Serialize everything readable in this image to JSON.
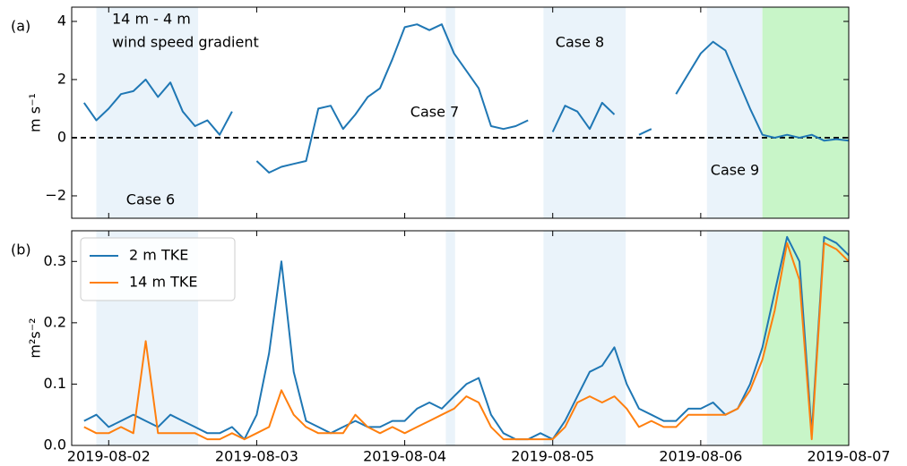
{
  "chart_data": [
    {
      "type": "line",
      "panel_label": "(a)",
      "ylabel": "m s⁻¹",
      "xlim": [
        "2019-08-01 18:00",
        "2019-08-07 00:00"
      ],
      "ylim": [
        -2.77,
        4.49
      ],
      "yticks": [
        {
          "value": -2,
          "label": "−2"
        },
        0,
        2,
        4
      ],
      "reference_line": 0,
      "annotations": [
        "14 m - 4 m",
        "wind speed gradient"
      ],
      "shaded_regions": [
        {
          "start": "2019-08-01 22:00",
          "end": "2019-08-02 14:30",
          "color": "#eaf3fa",
          "label": "Case 6"
        },
        {
          "start": "2019-08-04 06:40",
          "end": "2019-08-04 08:10",
          "color": "#eaf3fa",
          "label": "Case 7"
        },
        {
          "start": "2019-08-04 22:30",
          "end": "2019-08-05 11:50",
          "color": "#eaf3fa",
          "label": "Case 8"
        },
        {
          "start": "2019-08-06 01:00",
          "end": "2019-08-06 10:00",
          "color": "#eaf3fa",
          "label": "Case 9"
        },
        {
          "start": "2019-08-06 10:00",
          "end": "2019-08-07 00:00",
          "color": "#c8f5c8"
        }
      ],
      "x": [
        "2019-08-01 20:00",
        "2019-08-01 22:00",
        "2019-08-02 00:00",
        "2019-08-02 02:00",
        "2019-08-02 04:00",
        "2019-08-02 06:00",
        "2019-08-02 08:00",
        "2019-08-02 10:00",
        "2019-08-02 12:00",
        "2019-08-02 14:00",
        "2019-08-02 16:00",
        "2019-08-02 18:00",
        "2019-08-02 20:00",
        "2019-08-02 22:00",
        "2019-08-03 00:00",
        "2019-08-03 02:00",
        "2019-08-03 04:00",
        "2019-08-03 06:00",
        "2019-08-03 08:00",
        "2019-08-03 10:00",
        "2019-08-03 12:00",
        "2019-08-03 14:00",
        "2019-08-03 16:00",
        "2019-08-03 18:00",
        "2019-08-03 20:00",
        "2019-08-03 22:00",
        "2019-08-04 00:00",
        "2019-08-04 02:00",
        "2019-08-04 04:00",
        "2019-08-04 06:00",
        "2019-08-04 08:00",
        "2019-08-04 10:00",
        "2019-08-04 12:00",
        "2019-08-04 14:00",
        "2019-08-04 16:00",
        "2019-08-04 18:00",
        "2019-08-04 20:00",
        "2019-08-04 22:00",
        "2019-08-05 00:00",
        "2019-08-05 02:00",
        "2019-08-05 04:00",
        "2019-08-05 06:00",
        "2019-08-05 08:00",
        "2019-08-05 10:00",
        "2019-08-05 12:00",
        "2019-08-05 14:00",
        "2019-08-05 16:00",
        "2019-08-05 18:00",
        "2019-08-05 20:00",
        "2019-08-05 22:00",
        "2019-08-06 00:00",
        "2019-08-06 02:00",
        "2019-08-06 04:00",
        "2019-08-06 06:00",
        "2019-08-06 08:00",
        "2019-08-06 10:00",
        "2019-08-06 12:00",
        "2019-08-06 14:00",
        "2019-08-06 16:00",
        "2019-08-06 18:00",
        "2019-08-06 20:00",
        "2019-08-06 22:00",
        "2019-08-07 00:00"
      ],
      "series": [
        {
          "name": "14 m - 4 m wind speed gradient",
          "color": "#1f77b4",
          "values": [
            1.2,
            0.6,
            1.0,
            1.5,
            1.6,
            2.0,
            1.4,
            1.9,
            0.9,
            0.4,
            0.6,
            0.1,
            0.9,
            null,
            -0.8,
            -1.2,
            -1.0,
            -0.9,
            -0.8,
            1.0,
            1.1,
            0.3,
            0.8,
            1.4,
            1.7,
            2.7,
            3.8,
            3.9,
            3.7,
            3.9,
            2.9,
            2.3,
            1.7,
            0.4,
            0.3,
            0.4,
            0.6,
            null,
            0.2,
            1.1,
            0.9,
            0.3,
            1.2,
            0.8,
            null,
            0.1,
            0.3,
            null,
            1.5,
            2.2,
            2.9,
            3.3,
            3.0,
            2.0,
            1.0,
            0.1,
            0.0,
            0.1,
            0.0,
            0.1,
            -0.1,
            -0.05,
            -0.1
          ]
        }
      ]
    },
    {
      "type": "line",
      "panel_label": "(b)",
      "ylabel": "m²s⁻²",
      "legend": "upper left",
      "xlim": [
        "2019-08-01 18:00",
        "2019-08-07 00:00"
      ],
      "xticks": [
        "2019-08-02",
        "2019-08-03",
        "2019-08-04",
        "2019-08-05",
        "2019-08-06",
        "2019-08-07"
      ],
      "ylim": [
        0,
        0.35
      ],
      "yticks": [
        {
          "value": 0,
          "label": "0.0"
        },
        0.1,
        0.2,
        0.3
      ],
      "shaded_regions": [
        {
          "start": "2019-08-01 22:00",
          "end": "2019-08-02 14:30",
          "color": "#eaf3fa"
        },
        {
          "start": "2019-08-04 06:40",
          "end": "2019-08-04 08:10",
          "color": "#eaf3fa"
        },
        {
          "start": "2019-08-04 22:30",
          "end": "2019-08-05 11:50",
          "color": "#eaf3fa"
        },
        {
          "start": "2019-08-06 01:00",
          "end": "2019-08-06 10:00",
          "color": "#eaf3fa"
        },
        {
          "start": "2019-08-06 10:00",
          "end": "2019-08-07 00:00",
          "color": "#c8f5c8"
        }
      ],
      "x": [
        "2019-08-01 20:00",
        "2019-08-01 22:00",
        "2019-08-02 00:00",
        "2019-08-02 02:00",
        "2019-08-02 04:00",
        "2019-08-02 06:00",
        "2019-08-02 08:00",
        "2019-08-02 10:00",
        "2019-08-02 12:00",
        "2019-08-02 14:00",
        "2019-08-02 16:00",
        "2019-08-02 18:00",
        "2019-08-02 20:00",
        "2019-08-02 22:00",
        "2019-08-03 00:00",
        "2019-08-03 02:00",
        "2019-08-03 04:00",
        "2019-08-03 06:00",
        "2019-08-03 08:00",
        "2019-08-03 10:00",
        "2019-08-03 12:00",
        "2019-08-03 14:00",
        "2019-08-03 16:00",
        "2019-08-03 18:00",
        "2019-08-03 20:00",
        "2019-08-03 22:00",
        "2019-08-04 00:00",
        "2019-08-04 02:00",
        "2019-08-04 04:00",
        "2019-08-04 06:00",
        "2019-08-04 08:00",
        "2019-08-04 10:00",
        "2019-08-04 12:00",
        "2019-08-04 14:00",
        "2019-08-04 16:00",
        "2019-08-04 18:00",
        "2019-08-04 20:00",
        "2019-08-04 22:00",
        "2019-08-05 00:00",
        "2019-08-05 02:00",
        "2019-08-05 04:00",
        "2019-08-05 06:00",
        "2019-08-05 08:00",
        "2019-08-05 10:00",
        "2019-08-05 12:00",
        "2019-08-05 14:00",
        "2019-08-05 16:00",
        "2019-08-05 18:00",
        "2019-08-05 20:00",
        "2019-08-05 22:00",
        "2019-08-06 00:00",
        "2019-08-06 02:00",
        "2019-08-06 04:00",
        "2019-08-06 06:00",
        "2019-08-06 08:00",
        "2019-08-06 10:00",
        "2019-08-06 12:00",
        "2019-08-06 14:00",
        "2019-08-06 16:00",
        "2019-08-06 18:00",
        "2019-08-06 20:00",
        "2019-08-06 22:00",
        "2019-08-07 00:00"
      ],
      "series": [
        {
          "name": "2 m TKE",
          "color": "#1f77b4",
          "values": [
            0.04,
            0.05,
            0.03,
            0.04,
            0.05,
            0.04,
            0.03,
            0.05,
            0.04,
            0.03,
            0.02,
            0.02,
            0.03,
            0.01,
            0.05,
            0.15,
            0.3,
            0.12,
            0.04,
            0.03,
            0.02,
            0.03,
            0.04,
            0.03,
            0.03,
            0.04,
            0.04,
            0.06,
            0.07,
            0.06,
            0.08,
            0.1,
            0.11,
            0.05,
            0.02,
            0.01,
            0.01,
            0.02,
            0.01,
            0.04,
            0.08,
            0.12,
            0.13,
            0.16,
            0.1,
            0.06,
            0.05,
            0.04,
            0.04,
            0.06,
            0.06,
            0.07,
            0.05,
            0.06,
            0.1,
            0.16,
            0.25,
            0.34,
            0.3,
            0.02,
            0.34,
            0.33,
            0.31
          ]
        },
        {
          "name": "14 m TKE",
          "color": "#ff7f0e",
          "values": [
            0.03,
            0.02,
            0.02,
            0.03,
            0.02,
            0.17,
            0.02,
            0.02,
            0.02,
            0.02,
            0.01,
            0.01,
            0.02,
            0.01,
            0.02,
            0.03,
            0.09,
            0.05,
            0.03,
            0.02,
            0.02,
            0.02,
            0.05,
            0.03,
            0.02,
            0.03,
            0.02,
            0.03,
            0.04,
            0.05,
            0.06,
            0.08,
            0.07,
            0.03,
            0.01,
            0.01,
            0.01,
            0.01,
            0.01,
            0.03,
            0.07,
            0.08,
            0.07,
            0.08,
            0.06,
            0.03,
            0.04,
            0.03,
            0.03,
            0.05,
            0.05,
            0.05,
            0.05,
            0.06,
            0.09,
            0.14,
            0.22,
            0.33,
            0.27,
            0.01,
            0.33,
            0.32,
            0.3
          ]
        }
      ]
    }
  ]
}
